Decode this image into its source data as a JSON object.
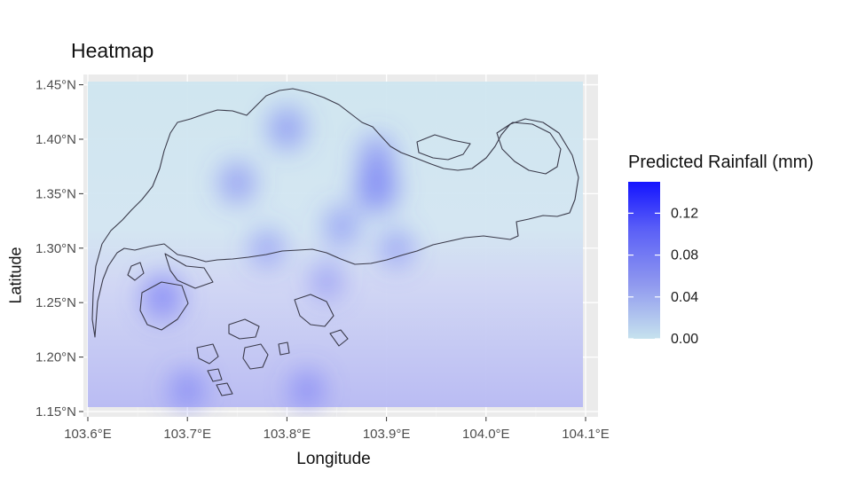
{
  "chart_data": {
    "type": "heatmap",
    "title": "Heatmap",
    "xlabel": "Longitude",
    "ylabel": "Latitude",
    "xlim": [
      103.6,
      104.1
    ],
    "ylim": [
      1.15,
      1.47
    ],
    "x_ticks": [
      103.6,
      103.7,
      103.8,
      103.9,
      104.0,
      104.1
    ],
    "x_tick_labels": [
      "103.6°E",
      "103.7°E",
      "103.8°E",
      "103.9°E",
      "104.0°E",
      "104.1°E"
    ],
    "y_ticks": [
      1.15,
      1.2,
      1.25,
      1.3,
      1.35,
      1.4,
      1.45
    ],
    "y_tick_labels": [
      "1.15°N",
      "1.20°N",
      "1.25°N",
      "1.30°N",
      "1.35°N",
      "1.40°N",
      "1.45°N"
    ],
    "grid": true,
    "legend": {
      "title": "Predicted Rainfall (mm)",
      "placement": "right",
      "range": [
        0.0,
        0.15
      ],
      "ticks": [
        0.0,
        0.04,
        0.08,
        0.12
      ],
      "tick_labels": [
        "0.00",
        "0.04",
        "0.08",
        "0.12"
      ],
      "low_color": "#c6e2ee",
      "high_color": "#1a1aff"
    },
    "hotspots": [
      {
        "lon": 103.675,
        "lat": 1.255,
        "value": 0.075
      },
      {
        "lon": 103.8,
        "lat": 1.41,
        "value": 0.06
      },
      {
        "lon": 103.89,
        "lat": 1.355,
        "value": 0.09
      },
      {
        "lon": 103.89,
        "lat": 1.385,
        "value": 0.055
      },
      {
        "lon": 103.75,
        "lat": 1.36,
        "value": 0.055
      },
      {
        "lon": 103.855,
        "lat": 1.32,
        "value": 0.05
      },
      {
        "lon": 103.78,
        "lat": 1.3,
        "value": 0.04
      },
      {
        "lon": 103.91,
        "lat": 1.3,
        "value": 0.04
      },
      {
        "lon": 103.84,
        "lat": 1.27,
        "value": 0.035
      },
      {
        "lon": 103.7,
        "lat": 1.17,
        "value": 0.05
      },
      {
        "lon": 103.82,
        "lat": 1.17,
        "value": 0.045
      }
    ]
  }
}
